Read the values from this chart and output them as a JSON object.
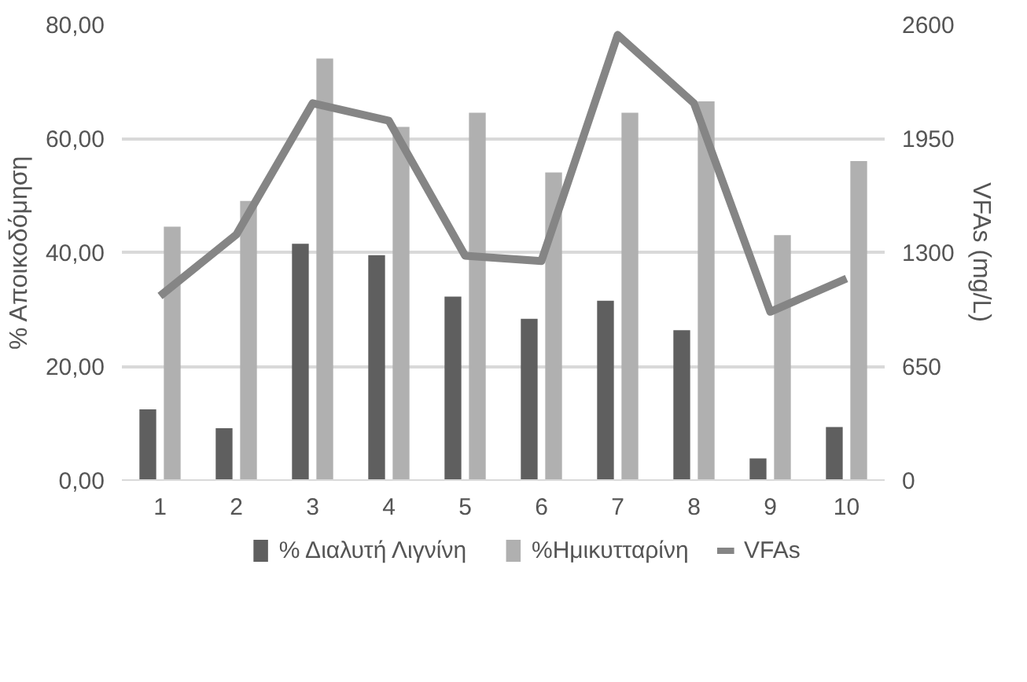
{
  "chart_data": {
    "type": "bar",
    "categories": [
      "1",
      "2",
      "3",
      "4",
      "5",
      "6",
      "7",
      "8",
      "9",
      "10"
    ],
    "ylabel": "% Αποικοδόμηση",
    "y2label": "VFAs (mg/L)",
    "ylim": [
      0,
      80
    ],
    "yticks": [
      {
        "value": 0,
        "label": "0,00"
      },
      {
        "value": 20,
        "label": "20,00"
      },
      {
        "value": 40,
        "label": "40,00"
      },
      {
        "value": 60,
        "label": "60,00"
      },
      {
        "value": 80,
        "label": "80,00"
      }
    ],
    "y2lim": [
      0,
      2600
    ],
    "y2ticks": [
      0,
      650,
      1300,
      1950,
      2600
    ],
    "grid": "y",
    "legend": "bottom",
    "series": [
      {
        "name": "% Διαλυτή Λιγνίνη",
        "color": "#5f5f5f",
        "values": [
          12.4,
          9.1,
          41.5,
          39.5,
          32.2,
          28.3,
          31.5,
          26.3,
          3.8,
          9.3
        ]
      },
      {
        "name": "%Ημικυτταρίνη",
        "color": "#b0b0b0",
        "values": [
          44.5,
          49,
          74,
          62,
          64.5,
          54,
          64.5,
          66.5,
          43,
          56
        ]
      },
      {
        "name": "VFAs",
        "type": "line",
        "axis": "y2",
        "color": "#858585",
        "values": [
          1050,
          1400,
          2150,
          2050,
          1280,
          1250,
          2540,
          2150,
          960,
          1150
        ]
      }
    ]
  }
}
